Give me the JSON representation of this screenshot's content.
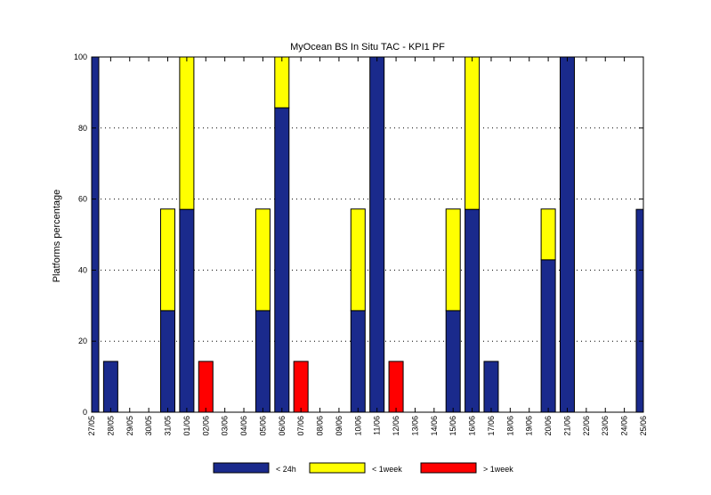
{
  "chart_data": {
    "type": "bar",
    "stacked": true,
    "title": "MyOcean  BS In Situ TAC - KPI1  PF",
    "xlabel": "",
    "ylabel": "Platforms percentage",
    "ylim": [
      0,
      100
    ],
    "yticks": [
      0,
      20,
      40,
      60,
      80,
      100
    ],
    "grid": "horizontal-dotted",
    "legend_position": "bottom",
    "categories": [
      "27/05",
      "28/05",
      "29/05",
      "30/05",
      "31/05",
      "01/06",
      "02/06",
      "03/06",
      "04/06",
      "05/06",
      "06/06",
      "07/06",
      "08/06",
      "09/06",
      "10/06",
      "11/06",
      "12/06",
      "13/06",
      "14/06",
      "15/06",
      "16/06",
      "17/06",
      "18/06",
      "19/06",
      "20/06",
      "21/06",
      "22/06",
      "23/06",
      "24/06",
      "25/06"
    ],
    "series": [
      {
        "name": "< 24h",
        "color": "#1a2a8c",
        "values": [
          100,
          14.3,
          0,
          0,
          28.6,
          57.1,
          0,
          0,
          0,
          28.6,
          85.7,
          0,
          0,
          0,
          28.6,
          100,
          0,
          0,
          0,
          28.6,
          57.1,
          14.3,
          0,
          0,
          42.9,
          100,
          0,
          0,
          0,
          57.1
        ]
      },
      {
        "name": "< 1week",
        "color": "#ffff00",
        "values": [
          0,
          0,
          0,
          0,
          28.6,
          42.9,
          0,
          0,
          0,
          28.6,
          14.3,
          0,
          0,
          0,
          28.6,
          0,
          0,
          0,
          0,
          28.6,
          42.9,
          0,
          0,
          0,
          14.3,
          0,
          0,
          0,
          0,
          0
        ]
      },
      {
        "name": "> 1week",
        "color": "#ff0000",
        "values": [
          0,
          0,
          0,
          0,
          0,
          0,
          14.3,
          0,
          0,
          0,
          0,
          14.3,
          0,
          0,
          0,
          0,
          14.3,
          0,
          0,
          0,
          0,
          0,
          0,
          0,
          0,
          0,
          0,
          0,
          0,
          0
        ]
      }
    ]
  }
}
